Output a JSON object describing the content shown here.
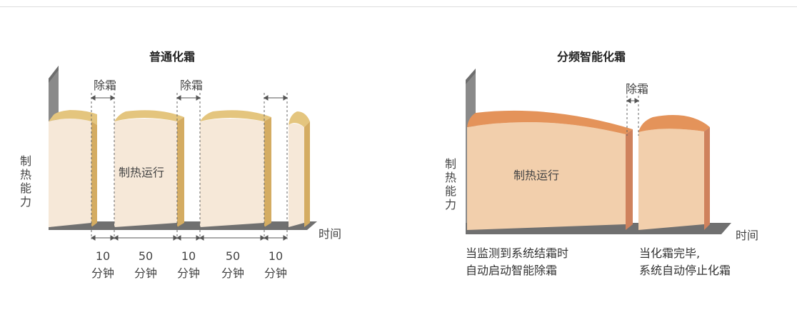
{
  "colors": {
    "top_yellow": "#e4c57e",
    "side_yellow": "#d4ac62",
    "body_light": "#f6e8d8",
    "top_orange": "#e4935a",
    "side_orange": "#cf825d",
    "body_orange": "#f2cfac",
    "axis_wall": "#808080",
    "axis_floor": "#6b6b6b"
  },
  "left": {
    "title": "普通化霜",
    "y_label": "制热能力",
    "x_label": "时间",
    "defrost_label": "除霜",
    "run_label": "制热运行",
    "durations": [
      {
        "num": "10",
        "unit": "分钟"
      },
      {
        "num": "50",
        "unit": "分钟"
      },
      {
        "num": "10",
        "unit": "分钟"
      },
      {
        "num": "50",
        "unit": "分钟"
      },
      {
        "num": "10",
        "unit": "分钟"
      }
    ]
  },
  "right": {
    "title": "分频智能化霜",
    "y_label": "制热能力",
    "x_label": "时间",
    "defrost_label": "除霜",
    "run_label": "制热运行",
    "note_left": [
      "当监测到系统结霜时",
      "自动启动智能除霜"
    ],
    "note_right": [
      "当化霜完毕,",
      "系统自动停止化霜"
    ]
  }
}
